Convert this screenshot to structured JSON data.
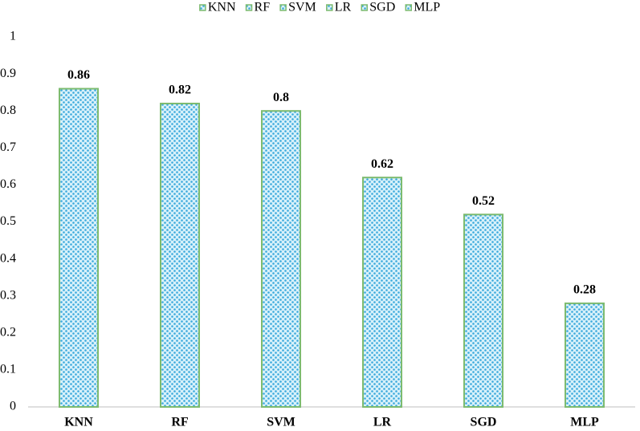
{
  "chart_data": {
    "type": "bar",
    "categories": [
      "KNN",
      "RF",
      "SVM",
      "LR",
      "SGD",
      "MLP"
    ],
    "values": [
      0.86,
      0.82,
      0.8,
      0.62,
      0.52,
      0.28
    ],
    "color": "#3aa9dc",
    "edge_color": "#7dbb6f",
    "ylim": [
      0,
      1
    ],
    "yticks": [
      0,
      0.1,
      0.2,
      0.3,
      0.4,
      0.5,
      0.6,
      0.7,
      0.8,
      0.9,
      1
    ],
    "grid": false,
    "legend": "top"
  }
}
